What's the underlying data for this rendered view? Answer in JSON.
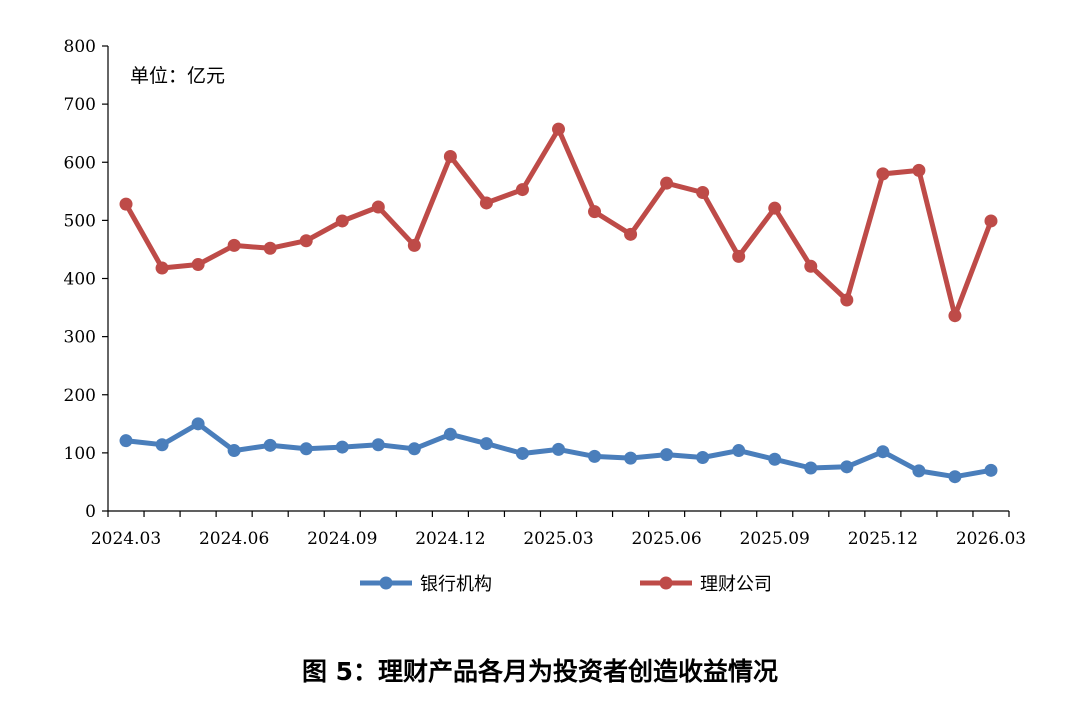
{
  "chart_data": {
    "type": "line",
    "unit_label": "单位：亿元",
    "caption": "图 5：理财产品各月为投资者创造收益情况",
    "ylim": [
      0,
      800
    ],
    "yticks": [
      0,
      100,
      200,
      300,
      400,
      500,
      600,
      700,
      800
    ],
    "x": [
      "2024.03",
      "2024.04",
      "2024.05",
      "2024.06",
      "2024.07",
      "2024.08",
      "2024.09",
      "2024.10",
      "2024.11",
      "2024.12",
      "2025.01",
      "2025.02",
      "2025.03",
      "2025.04",
      "2025.05",
      "2025.06",
      "2025.07",
      "2025.08",
      "2025.09",
      "2025.10",
      "2025.11",
      "2025.12",
      "2026.01",
      "2026.02",
      "2026.03"
    ],
    "xtick_labels": [
      "2024.03",
      "",
      "",
      "2024.06",
      "",
      "",
      "2024.09",
      "",
      "",
      "2024.12",
      "",
      "",
      "2025.03",
      "",
      "",
      "2025.06",
      "",
      "",
      "2025.09",
      "",
      "",
      "2025.12",
      "",
      "",
      "2026.03"
    ],
    "grid": false,
    "legend_position": "bottom",
    "series": [
      {
        "name": "银行机构",
        "color": "#4a7ebb",
        "values": [
          121,
          114,
          150,
          104,
          113,
          107,
          110,
          114,
          107,
          132,
          116,
          99,
          106,
          94,
          91,
          97,
          92,
          104,
          89,
          74,
          76,
          102,
          69,
          59,
          70
        ]
      },
      {
        "name": "理财公司",
        "color": "#be4b48",
        "values": [
          528,
          418,
          424,
          457,
          452,
          465,
          499,
          523,
          457,
          610,
          530,
          553,
          657,
          515,
          476,
          564,
          548,
          438,
          521,
          421,
          363,
          580,
          586,
          336,
          499
        ]
      }
    ]
  }
}
